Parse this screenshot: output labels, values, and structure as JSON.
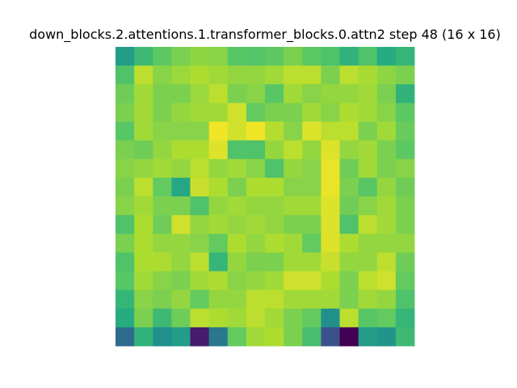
{
  "chart_data": {
    "type": "heatmap",
    "title": "down_blocks.2.attentions.1.transformer_blocks.0.attn2 step 48 (16 x 16)",
    "xlabel": "",
    "ylabel": "",
    "rows": 16,
    "cols": 16,
    "colormap": "viridis",
    "axes_visible": false,
    "grid": false,
    "value_range": [
      0,
      1
    ],
    "values": [
      [
        0.55,
        0.68,
        0.75,
        0.8,
        0.83,
        0.82,
        0.74,
        0.73,
        0.75,
        0.8,
        0.75,
        0.72,
        0.65,
        0.72,
        0.62,
        0.66
      ],
      [
        0.72,
        0.9,
        0.82,
        0.85,
        0.88,
        0.86,
        0.84,
        0.84,
        0.86,
        0.9,
        0.9,
        0.8,
        0.9,
        0.87,
        0.83,
        0.8
      ],
      [
        0.78,
        0.86,
        0.8,
        0.8,
        0.85,
        0.9,
        0.8,
        0.82,
        0.74,
        0.86,
        0.82,
        0.84,
        0.84,
        0.86,
        0.8,
        0.65
      ],
      [
        0.8,
        0.86,
        0.8,
        0.84,
        0.86,
        0.86,
        0.93,
        0.76,
        0.8,
        0.8,
        0.86,
        0.82,
        0.88,
        0.86,
        0.82,
        0.75
      ],
      [
        0.74,
        0.86,
        0.82,
        0.82,
        0.82,
        0.98,
        0.93,
        0.98,
        0.89,
        0.82,
        0.95,
        0.9,
        0.9,
        0.8,
        0.86,
        0.77
      ],
      [
        0.8,
        0.78,
        0.84,
        0.88,
        0.88,
        0.95,
        0.72,
        0.72,
        0.84,
        0.9,
        0.84,
        0.95,
        0.84,
        0.86,
        0.8,
        0.75
      ],
      [
        0.82,
        0.84,
        0.86,
        0.84,
        0.9,
        0.84,
        0.86,
        0.82,
        0.72,
        0.84,
        0.82,
        0.97,
        0.78,
        0.86,
        0.8,
        0.82
      ],
      [
        0.8,
        0.9,
        0.76,
        0.6,
        0.92,
        0.88,
        0.8,
        0.88,
        0.88,
        0.82,
        0.82,
        0.97,
        0.8,
        0.74,
        0.84,
        0.78
      ],
      [
        0.82,
        0.86,
        0.8,
        0.8,
        0.72,
        0.84,
        0.86,
        0.84,
        0.84,
        0.86,
        0.86,
        0.95,
        0.78,
        0.82,
        0.86,
        0.8
      ],
      [
        0.72,
        0.88,
        0.78,
        0.93,
        0.84,
        0.86,
        0.84,
        0.86,
        0.84,
        0.8,
        0.8,
        0.95,
        0.72,
        0.9,
        0.86,
        0.8
      ],
      [
        0.8,
        0.88,
        0.84,
        0.84,
        0.82,
        0.76,
        0.88,
        0.84,
        0.88,
        0.86,
        0.76,
        0.95,
        0.88,
        0.84,
        0.84,
        0.84
      ],
      [
        0.72,
        0.88,
        0.88,
        0.84,
        0.9,
        0.66,
        0.84,
        0.8,
        0.8,
        0.86,
        0.86,
        0.92,
        0.84,
        0.84,
        0.9,
        0.78
      ],
      [
        0.74,
        0.86,
        0.82,
        0.8,
        0.86,
        0.88,
        0.82,
        0.84,
        0.86,
        0.93,
        0.93,
        0.88,
        0.8,
        0.9,
        0.93,
        0.76
      ],
      [
        0.66,
        0.82,
        0.8,
        0.84,
        0.76,
        0.84,
        0.84,
        0.9,
        0.9,
        0.86,
        0.86,
        0.86,
        0.8,
        0.86,
        0.84,
        0.72
      ],
      [
        0.62,
        0.8,
        0.68,
        0.78,
        0.9,
        0.88,
        0.86,
        0.9,
        0.86,
        0.8,
        0.76,
        0.5,
        0.9,
        0.74,
        0.76,
        0.66
      ],
      [
        0.35,
        0.65,
        0.5,
        0.55,
        0.08,
        0.4,
        0.76,
        0.86,
        0.88,
        0.8,
        0.7,
        0.25,
        0.0,
        0.55,
        0.52,
        0.68
      ]
    ]
  }
}
